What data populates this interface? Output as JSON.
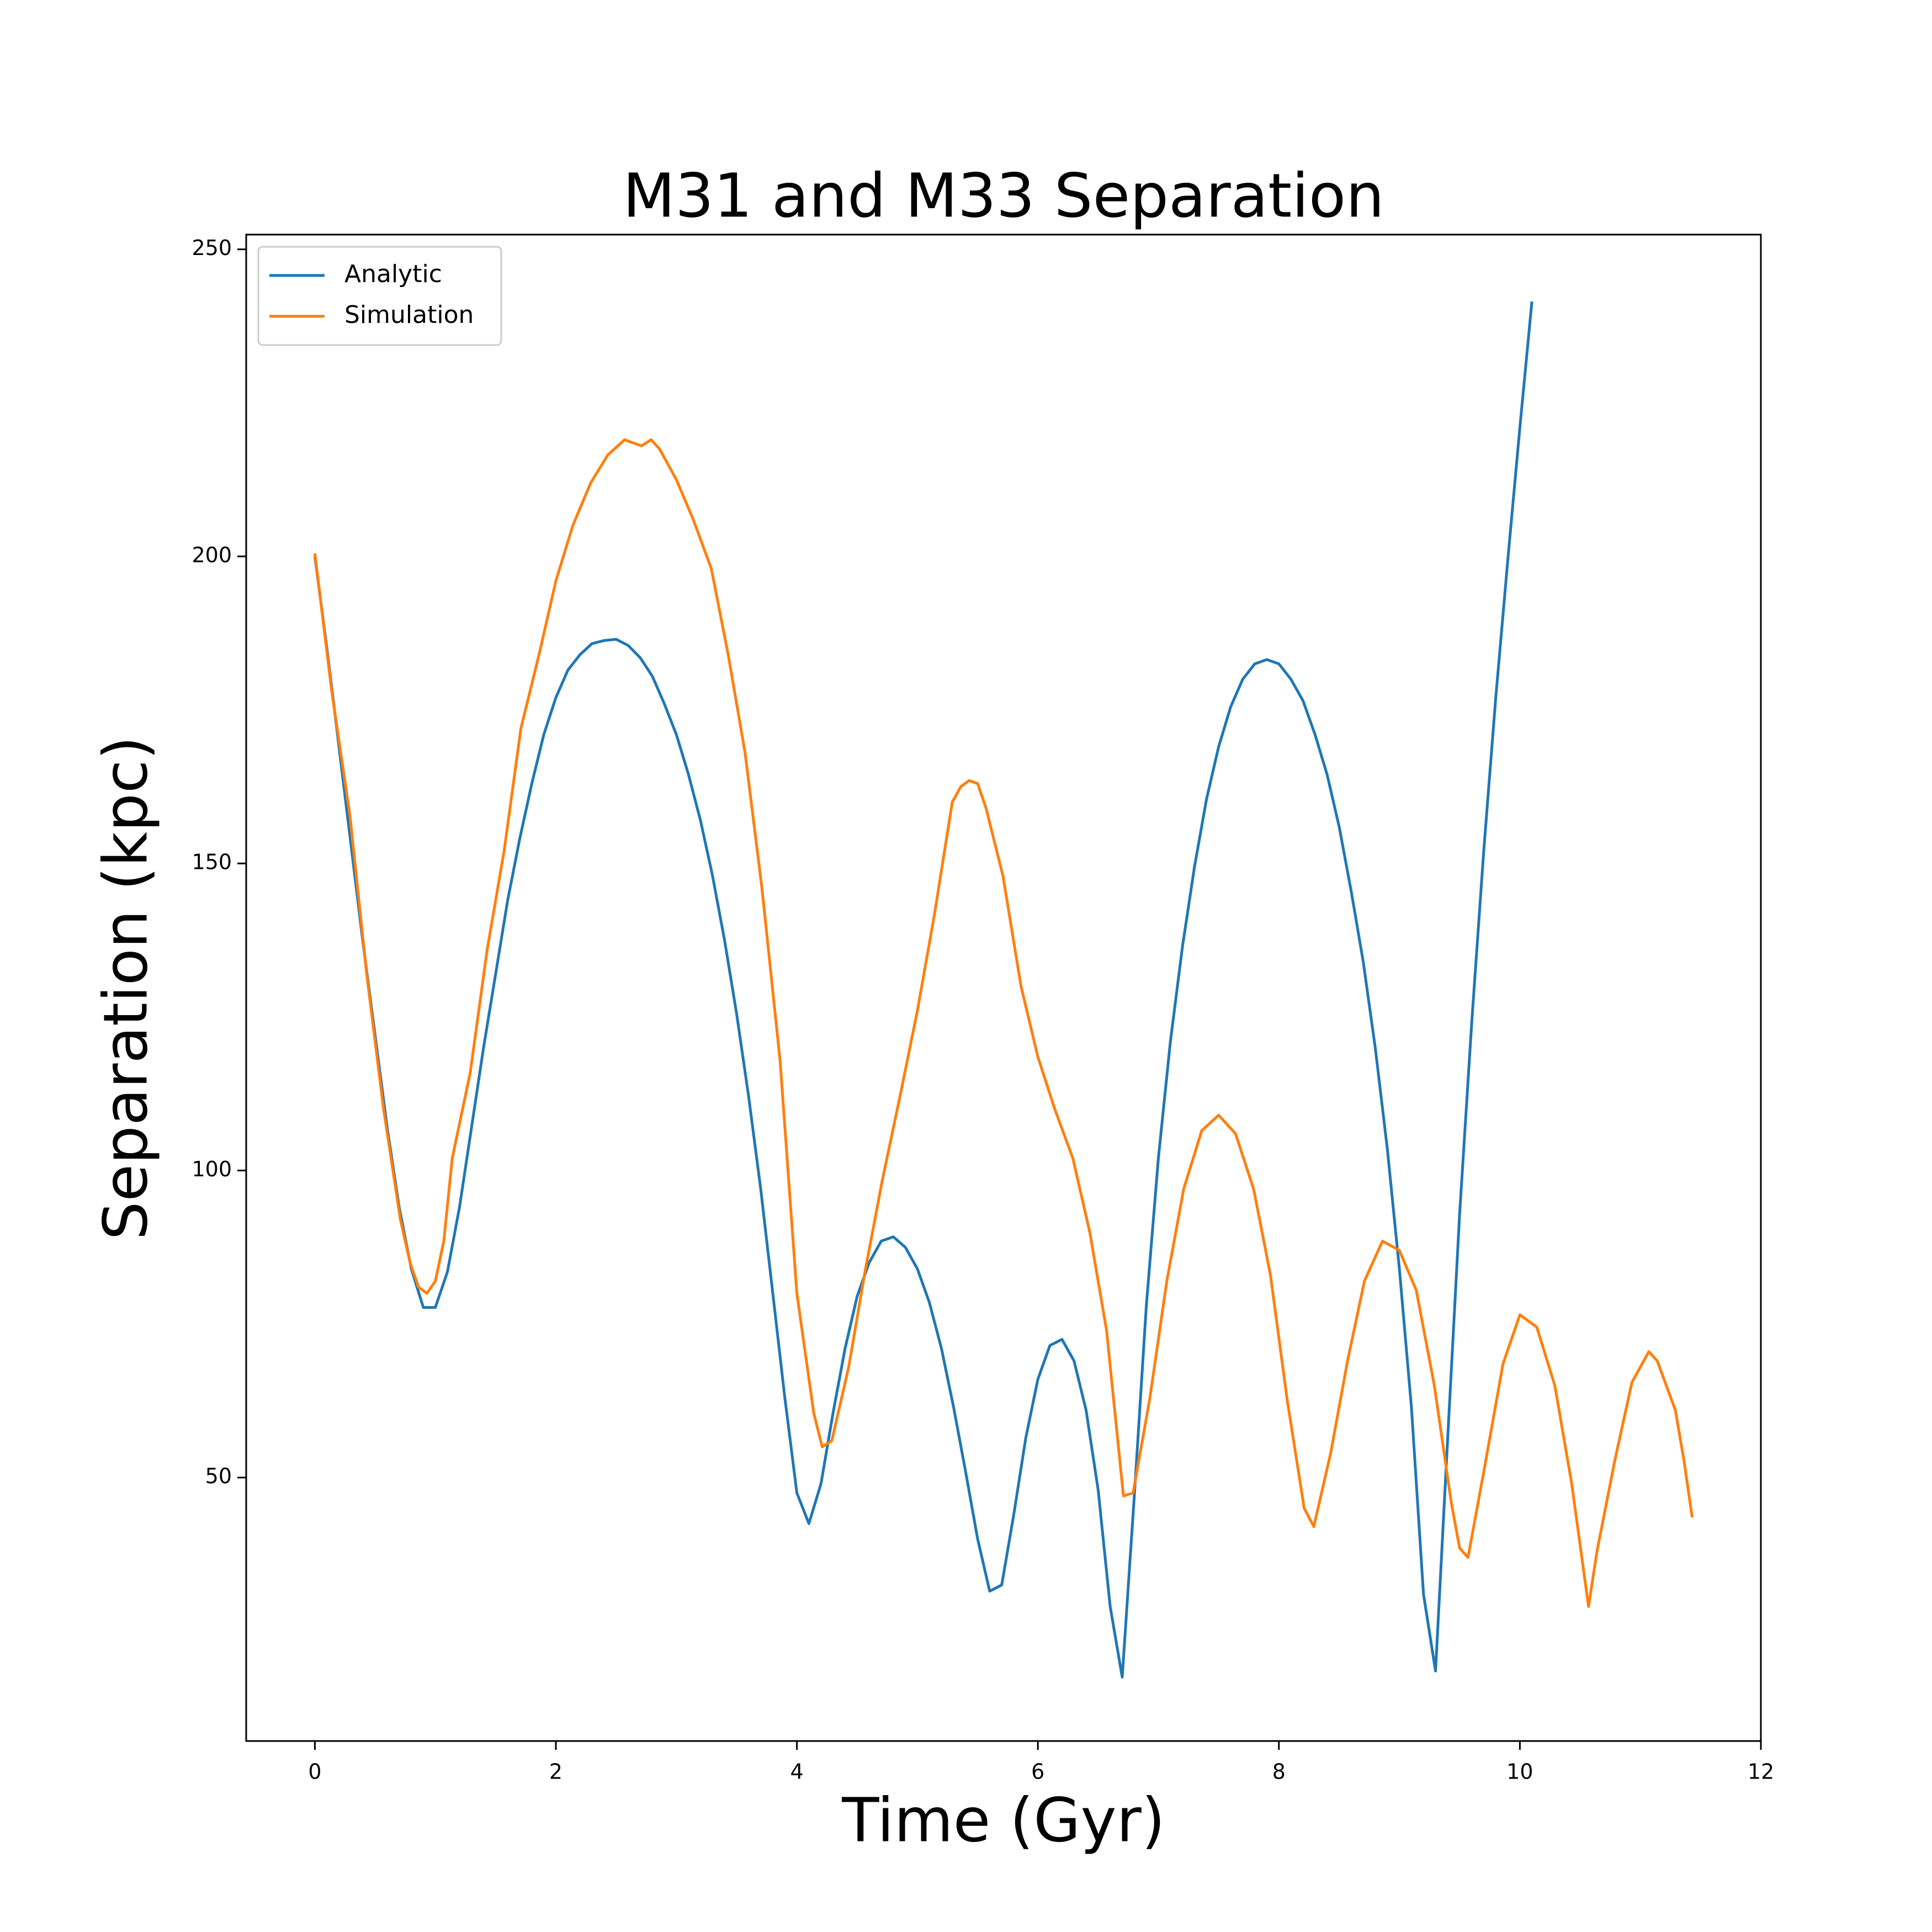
{
  "chart_data": {
    "type": "line",
    "title": "M31 and M33 Separation",
    "x_label": "Time (Gyr)",
    "y_label": "Separation (kpc)",
    "xlim": [
      -0.57,
      12.0
    ],
    "xticks": [
      0,
      2,
      4,
      6,
      8,
      10,
      12
    ],
    "ylim": [
      7.1,
      252.4
    ],
    "yticks": [
      50,
      100,
      150,
      200,
      250
    ],
    "grid": false,
    "legend": "upper left",
    "series": [
      {
        "name": "Analytic",
        "color": "#1f77b4",
        "x": [
          0.0,
          0.1,
          0.2,
          0.3,
          0.4,
          0.5,
          0.6,
          0.7,
          0.8,
          0.9,
          1.0,
          1.1,
          1.2,
          1.3,
          1.4,
          1.5,
          1.6,
          1.7,
          1.8,
          1.9,
          2.0,
          2.1,
          2.2,
          2.3,
          2.4,
          2.5,
          2.6,
          2.7,
          2.8,
          2.9,
          3.0,
          3.1,
          3.2,
          3.3,
          3.4,
          3.5,
          3.6,
          3.7,
          3.8,
          3.9,
          4.0,
          4.1,
          4.2,
          4.3,
          4.4,
          4.5,
          4.6,
          4.7,
          4.8,
          4.9,
          5.0,
          5.1,
          5.2,
          5.3,
          5.4,
          5.5,
          5.6,
          5.7,
          5.8,
          5.9,
          6.0,
          6.1,
          6.2,
          6.3,
          6.4,
          6.5,
          6.6,
          6.7,
          6.8,
          6.9,
          7.0,
          7.1,
          7.2,
          7.3,
          7.4,
          7.5,
          7.6,
          7.7,
          7.8,
          7.9,
          8.0,
          8.1,
          8.2,
          8.3,
          8.4,
          8.5,
          8.6,
          8.7,
          8.8,
          8.9,
          9.0,
          9.1,
          9.2,
          9.3,
          9.4,
          9.5,
          9.6,
          9.7,
          9.8,
          9.9,
          10.0,
          10.1
        ],
        "values": [
          200,
          185,
          169,
          153,
          137,
          122,
          107,
          94,
          84,
          77.7,
          77.7,
          83.5,
          94,
          107,
          120,
          132,
          144,
          154,
          163,
          171,
          177,
          181.5,
          184,
          185.8,
          186.3,
          186.5,
          185.5,
          183.5,
          180.5,
          176,
          171,
          164.5,
          157,
          148,
          137.5,
          125.5,
          112,
          97,
          80,
          63,
          47.5,
          42.5,
          49,
          60.5,
          71,
          79.5,
          85,
          88.5,
          89.2,
          87.5,
          84,
          78.5,
          71,
          61.5,
          51,
          40,
          31.5,
          32.5,
          44,
          56.5,
          66,
          71.5,
          72.5,
          69,
          61,
          48,
          29,
          17.5,
          47,
          78,
          102,
          121,
          136.5,
          149.5,
          160.5,
          169,
          175.5,
          180,
          182.5,
          183.2,
          182.5,
          180,
          176.5,
          171,
          164.5,
          156,
          145.5,
          134,
          120,
          103.5,
          84,
          61.5,
          31,
          18.5,
          56,
          93,
          124,
          152,
          177,
          199.5,
          221,
          241.5
        ]
      },
      {
        "name": "Simulation",
        "color": "#ff7f0e",
        "x": [
          0,
          0.14,
          0.29,
          0.43,
          0.57,
          0.71,
          0.79,
          0.86,
          0.93,
          1.0,
          1.07,
          1.14,
          1.29,
          1.43,
          1.57,
          1.71,
          1.86,
          2.0,
          2.14,
          2.29,
          2.43,
          2.57,
          2.71,
          2.79,
          2.86,
          3.0,
          3.14,
          3.29,
          3.43,
          3.57,
          3.71,
          3.86,
          4.0,
          4.14,
          4.21,
          4.29,
          4.43,
          4.57,
          4.71,
          4.86,
          5.0,
          5.14,
          5.29,
          5.36,
          5.43,
          5.5,
          5.57,
          5.71,
          5.86,
          6.0,
          6.14,
          6.29,
          6.43,
          6.57,
          6.71,
          6.79,
          6.93,
          7.07,
          7.21,
          7.36,
          7.5,
          7.64,
          7.79,
          7.93,
          8.07,
          8.21,
          8.29,
          8.43,
          8.57,
          8.71,
          8.86,
          9.0,
          9.14,
          9.29,
          9.43,
          9.5,
          9.57,
          9.71,
          9.86,
          10.0,
          10.14,
          10.29,
          10.43,
          10.57,
          10.64,
          10.79,
          10.93,
          11.07,
          11.14,
          11.29,
          11.36,
          11.43
        ],
        "values": [
          200.5,
          178,
          158,
          132,
          110,
          92,
          85,
          81,
          80,
          82,
          88.5,
          102,
          116,
          136,
          152,
          172,
          184,
          196,
          205,
          212,
          216.5,
          219,
          218,
          219,
          217.5,
          212.5,
          206,
          198,
          184,
          168,
          146,
          118,
          80,
          60.5,
          55,
          56,
          68,
          84,
          98.5,
          112.5,
          126,
          141.5,
          160,
          162.5,
          163.5,
          163,
          159,
          148,
          130,
          118.5,
          110,
          102,
          90,
          74,
          47,
          47.5,
          63,
          82,
          97,
          106.5,
          109,
          106,
          97,
          83,
          62.5,
          45,
          42,
          54,
          69,
          82,
          88.5,
          87,
          80.5,
          65,
          46,
          38.5,
          37,
          52,
          68.5,
          76.5,
          74.5,
          65,
          49,
          29,
          38,
          53,
          65.5,
          70.5,
          69,
          61,
          53,
          43.5
        ]
      }
    ]
  }
}
